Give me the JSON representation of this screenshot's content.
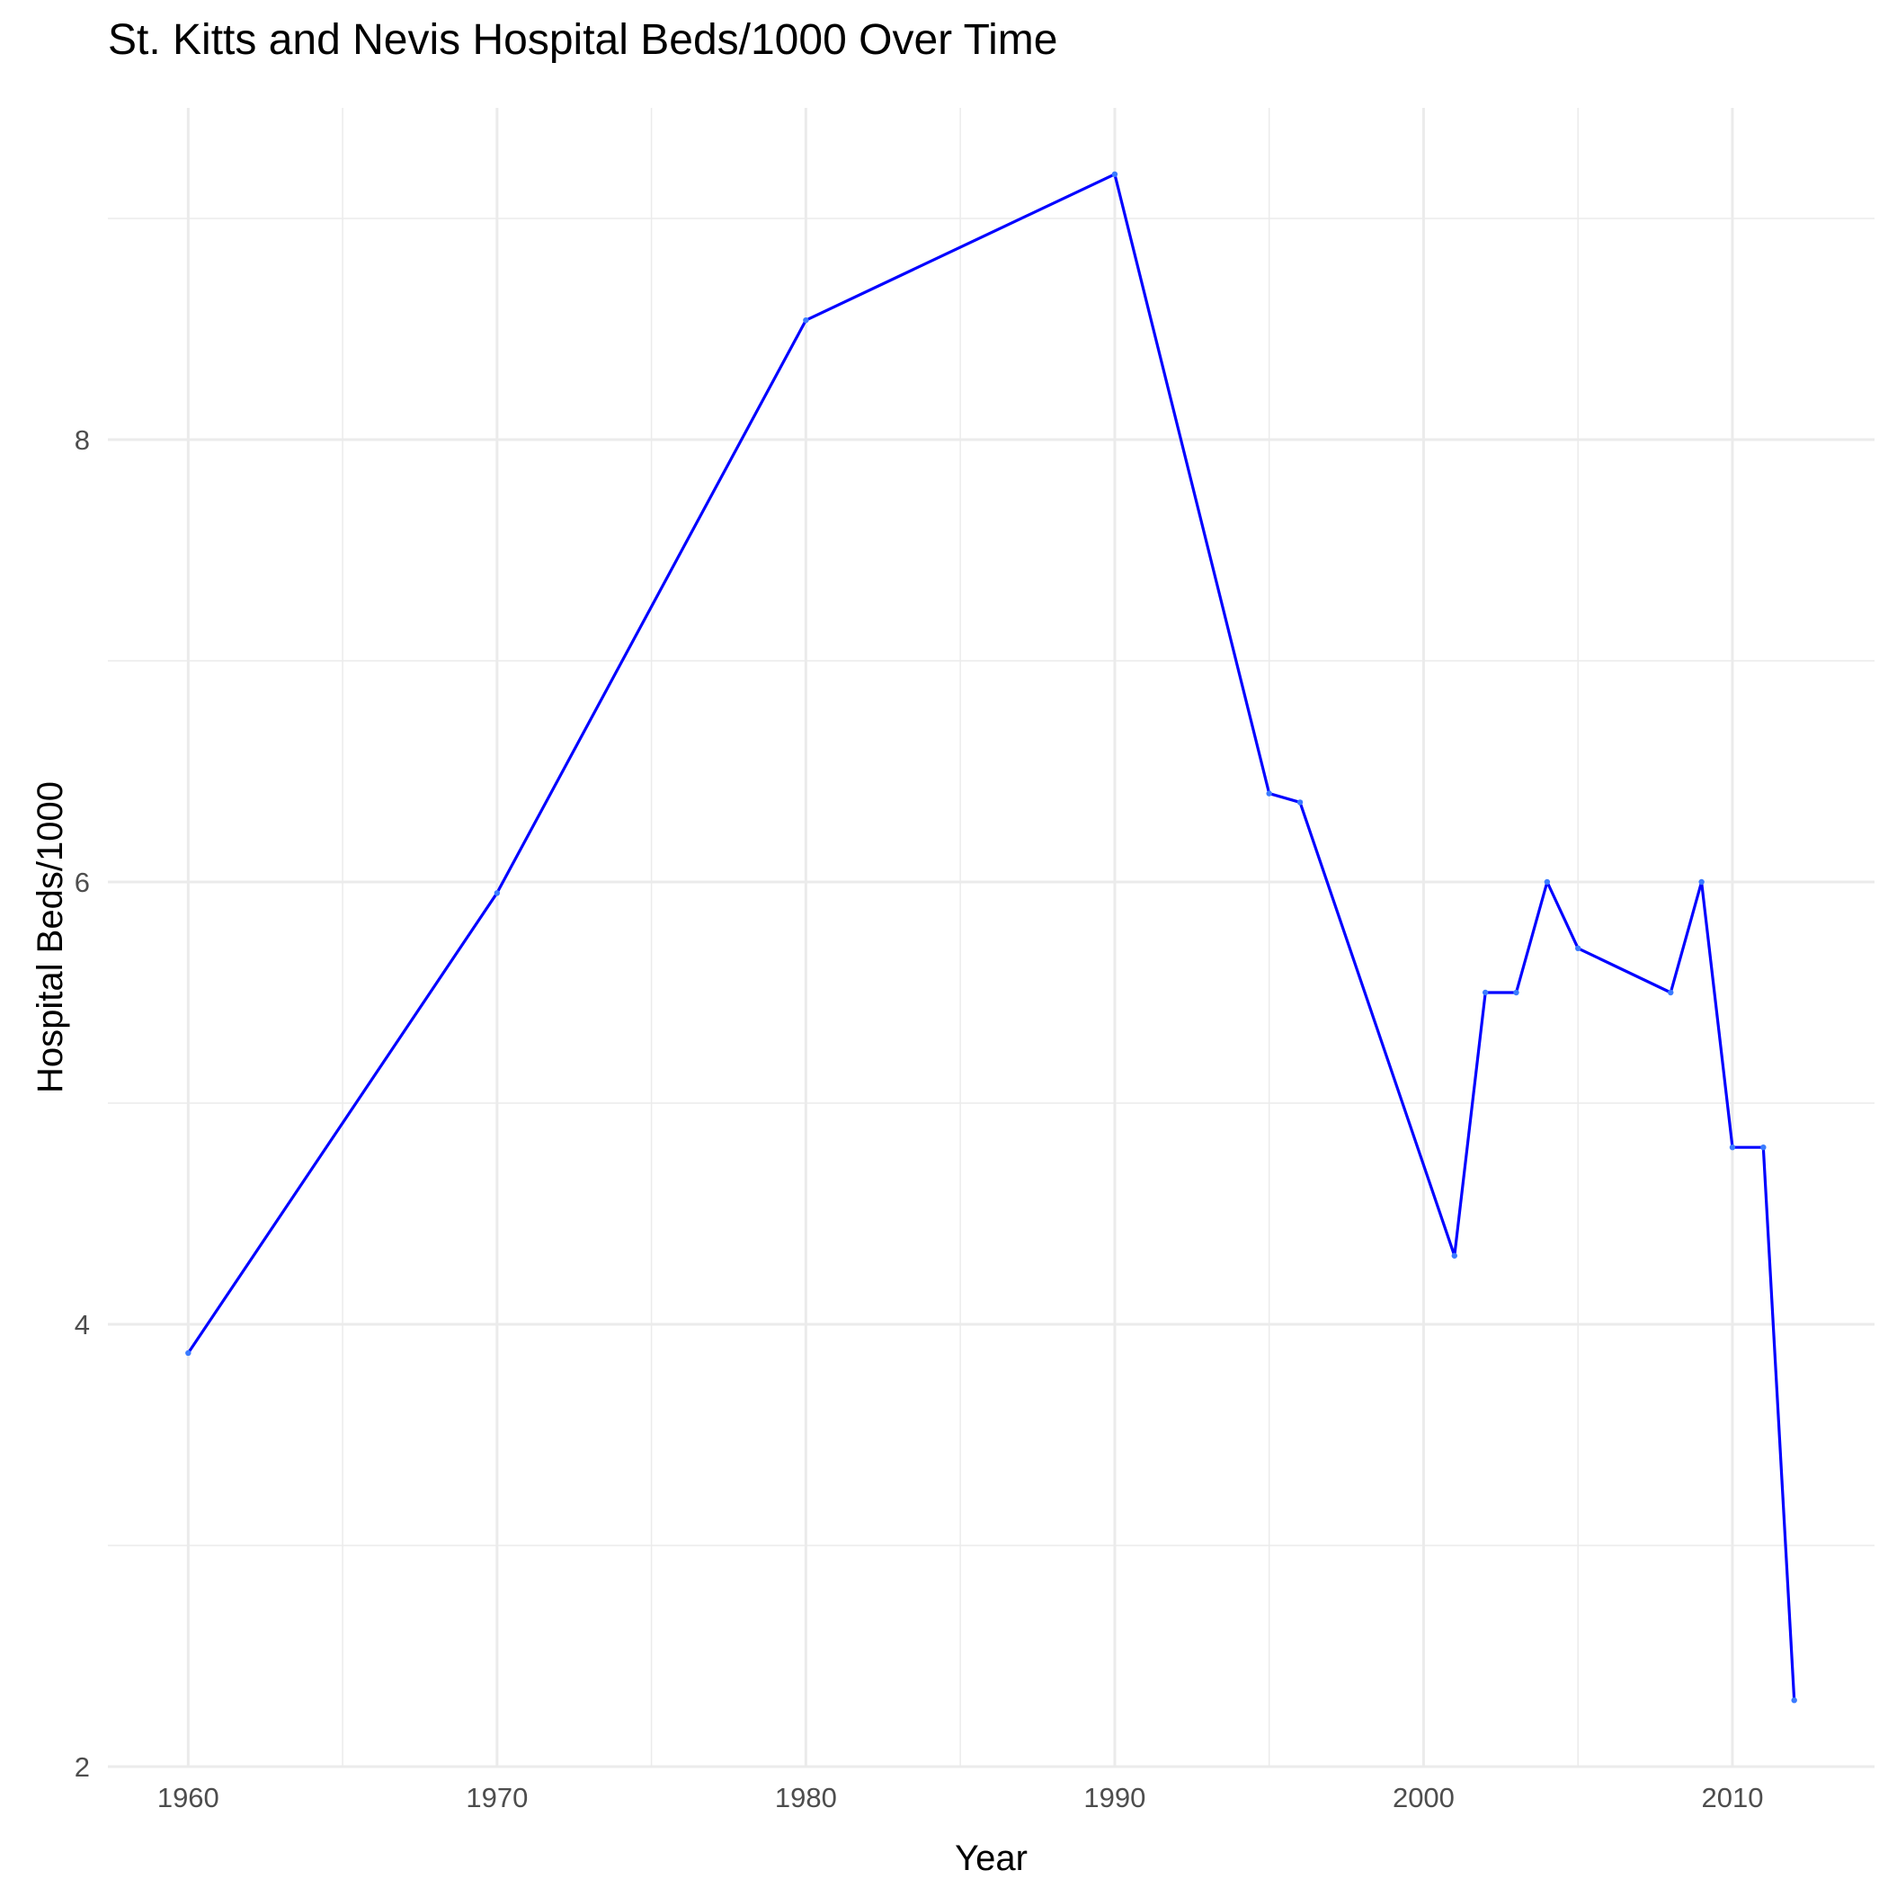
{
  "chart_data": {
    "type": "line",
    "title": "St. Kitts and Nevis Hospital Beds/1000 Over Time",
    "xlabel": "Year",
    "ylabel": "Hospital Beds/1000",
    "xlim": [
      1957.4,
      2014.6
    ],
    "ylim": [
      2.0,
      9.5
    ],
    "x_ticks": [
      1960,
      1970,
      1980,
      1990,
      2000,
      2010
    ],
    "x_minor_ticks": [
      1965,
      1975,
      1985,
      1995,
      2005
    ],
    "y_ticks": [
      2,
      4,
      6,
      8
    ],
    "y_minor_ticks": [
      3,
      5,
      7,
      9
    ],
    "grid": true,
    "legend": "none",
    "line_color": "#0000ff",
    "point_color": "#3a7bff",
    "series": [
      {
        "x": [
          1960,
          1970,
          1980,
          1990,
          1995,
          1996,
          2001,
          2002,
          2003,
          2004,
          2005,
          2008,
          2009,
          2010,
          2011,
          2012
        ],
        "y": [
          3.87,
          5.95,
          8.54,
          9.2,
          6.4,
          6.36,
          4.31,
          5.5,
          5.5,
          6.0,
          5.7,
          5.5,
          6.0,
          4.8,
          4.8,
          2.3
        ]
      }
    ]
  }
}
